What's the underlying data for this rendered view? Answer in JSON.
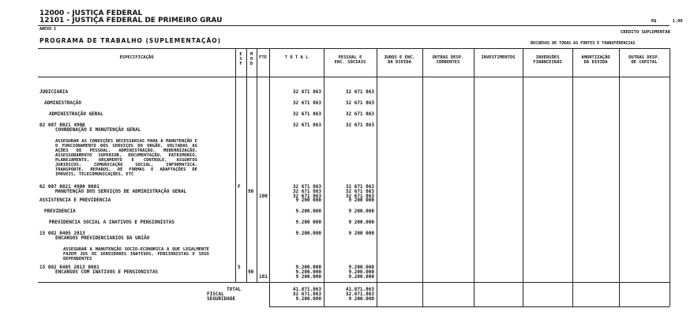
{
  "header": {
    "org1": "12000 - JUSTIÇA FEDERAL",
    "org2": "12101 - JUSTIÇA FEDERAL DE PRIMEIRO GRAU",
    "currency": "R$      1,00",
    "annex": "ANEXO I",
    "credit_type": "CREDITO SUPLEMENTAR",
    "program": "PROGRAMA DE TRABALHO (SUPLEMENTAÇÃO)",
    "resources": "RECURSOS DE TODAS AS FONTES E TRANSFERENCIAS"
  },
  "columns": [
    "ESPECIFICAÇÃO",
    "E\nS\nF",
    "M\nO\nD",
    "FTE",
    "T O T A L",
    "PESSOAL E\nENC. SOCIAIS",
    "JUROS E ENC.\nDA DIVIDA",
    "OUTRAS DESP.\nCORRENTES",
    "INVESTIMENTOS",
    "INVERSÕES\nFINANCEIRAS",
    "AMORTIZAÇÃO\nDA DIVIDA",
    "OUTRAS DESP.\nDE CAPITAL"
  ],
  "rows": [
    {
      "label": "JUDICIARIA",
      "indent": 0,
      "total": "32 671 863",
      "pessoal": "32 671 863"
    },
    {
      "label": "ADMINISTRAÇÃO",
      "indent": 1,
      "total": "32 671 863",
      "pessoal": "32 671 863"
    },
    {
      "label": "ADMINISTRAÇÃO GERAL",
      "indent": 2,
      "total": "32 671 863",
      "pessoal": "32 671 863"
    },
    {
      "code": "02 007 0021 4900",
      "label": "COORDENAÇÃO E MANUTENÇÃO GERAL",
      "total": "32 671 863",
      "pessoal": "32 671 863",
      "description": "ASSEGURAR AS CONDIÇÕES NECESSARIAS PARA A MANUTENÇÃO E O FUNCIONAMENTO DOS SERVIÇOS DO ORGÃO, VOLTADAS AS AÇÕES DE PESSOAL, ADMINISTRAÇÃO, MODERNIZAÇÃO, ASSESSORAMENTO SUPERIOR, DOCUMENTAÇÃO, PATRIMONIO, PLANEJAMENTO, ORÇAMENTO E CONTROLE, ASSUNTOS JURIDICOS, COMUNICAÇÃO SOCIAL, INFORMATICA, TRANSPORTE, REPAROS, DE FORMAS E ADAPTAÇÕES DE IMOVEIS, TELECOMUNICAÇÕES, ETC"
    },
    {
      "code": "02 007 0021 4900 0001",
      "label": "MANUTENÇÃO DOS SERVIÇOS DE ADMINISTRAÇÃO GERAL",
      "esf": "F",
      "mod": "90",
      "fte": "100",
      "totals": [
        "32 671 863",
        "32 671 863",
        "32 671 863"
      ],
      "pessoals": [
        "32 671 863",
        "32 671 863",
        "32 671 863"
      ]
    },
    {
      "label": "ASSISTENCIA E PREVIDENCIA",
      "indent": 0,
      "total": "9 200 000",
      "pessoal": "9 200 000"
    },
    {
      "label": "PREVIDENCIA",
      "indent": 1,
      "total": "9.200.000",
      "pessoal": "9 200.000"
    },
    {
      "label": "PREVIDENCIA SOCIAL A INATIVOS E PENSIONISTAS",
      "indent": 2,
      "total": "9.200 000",
      "pessoal": "9 200.000"
    },
    {
      "code": "15 082 0405 2013",
      "label": "ENCARGOS PREVIDENCIARIOS DA UNIÃO",
      "total": "9.200.000",
      "pessoal": "9 200 000",
      "description": "ASSEGURAR A MANUTENÇÃO SOCIO-ECONOMICA A QUE LEGALMENTE FAZEM JUS OS SERVIDORES INATIVOS, PENSIONISTAS E SEUS DEPENDENTES"
    },
    {
      "code": "15 082 0405 2013 0001",
      "label": "ENCARGOS COM INATIVOS E PENSIONISTAS",
      "esf": "S",
      "mod": "90",
      "fte": "101",
      "totals": [
        "9.200.000",
        "9.200.000",
        "9 200.000"
      ],
      "pessoals": [
        "9.200.000",
        "9.200.000",
        "9.200.000"
      ]
    }
  ],
  "totals": {
    "labels": [
      "TOTAL",
      "FISCAL",
      "SEGURIDADE"
    ],
    "total": [
      "41.871.863",
      "32 671.863",
      "9.200.000"
    ],
    "pessoal": [
      "41.871.863",
      "32.671.863",
      "9 200.000"
    ]
  }
}
